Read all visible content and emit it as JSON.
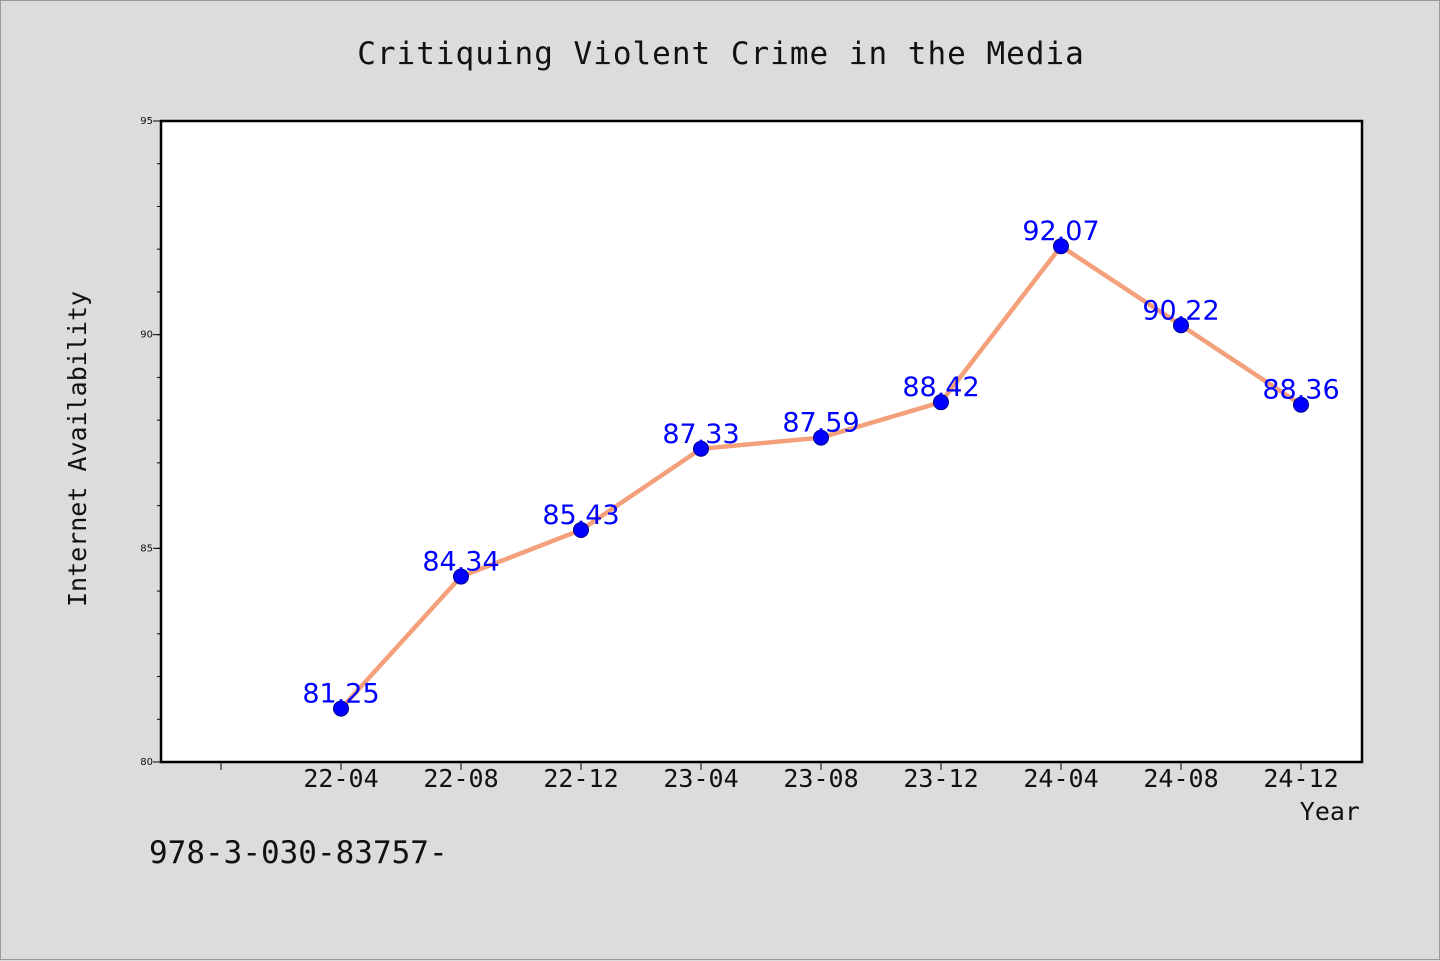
{
  "chart_data": {
    "type": "line",
    "title": "Critiquing Violent Crime in the Media",
    "xlabel": "Year",
    "ylabel": "Internet Availability",
    "categories": [
      "22-04",
      "22-08",
      "22-12",
      "23-04",
      "23-08",
      "23-12",
      "24-04",
      "24-08",
      "24-12"
    ],
    "series": [
      {
        "values": [
          81.25,
          84.34,
          85.43,
          87.33,
          87.59,
          88.42,
          92.07,
          90.22,
          88.36
        ],
        "line_color": "#f4a07a",
        "marker_color": "#0000ff"
      }
    ],
    "data_labels": [
      "81.25",
      "84.34",
      "85.43",
      "87.33",
      "87.59",
      "88.42",
      "92.07",
      "90.22",
      "88.36"
    ],
    "ylim": [
      80,
      95
    ],
    "yticks": [
      "80",
      "85",
      "90",
      "95"
    ],
    "grid": false,
    "legend": "none"
  },
  "footer": {
    "code": "978-3-030-83757-"
  },
  "colors": {
    "background": "#dcdcdc",
    "plot_area": "#ffffff",
    "line": "#f4a07a",
    "marker": "#0000ff",
    "data_label": "#0000ff"
  }
}
